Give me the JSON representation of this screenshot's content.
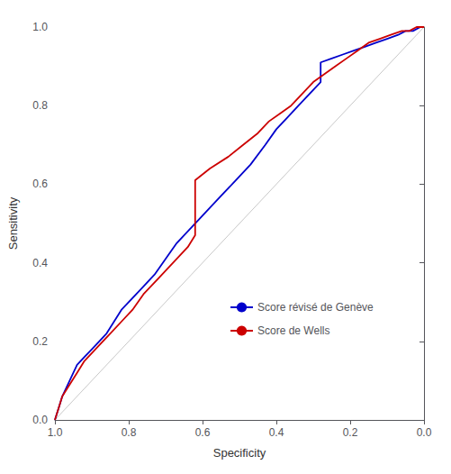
{
  "chart_data": {
    "type": "line",
    "xlabel": "Specificity",
    "ylabel": "Sensitivity",
    "xlim": [
      1.0,
      0.0
    ],
    "ylim": [
      0.0,
      1.0
    ],
    "xticks": [
      {
        "value": 1.0,
        "label": "1.0"
      },
      0.8,
      0.6,
      0.4,
      0.2,
      {
        "value": 0.0,
        "label": "0.0"
      }
    ],
    "yticks": [
      {
        "value": 0.0,
        "label": "0.0"
      },
      0.2,
      0.4,
      0.6,
      0.8,
      {
        "value": 1.0,
        "label": "1.0"
      }
    ],
    "grid": false,
    "legend": "lower right",
    "background_color": "#ffffff",
    "series": [
      {
        "color": "#c8c8c8",
        "x": [
          1.0,
          0.0
        ],
        "values": [
          0.0,
          1.0
        ]
      },
      {
        "name": "Score révisé de Genève",
        "color": "#0000cc",
        "x": [
          1.0,
          0.99,
          0.98,
          0.97,
          0.96,
          0.95,
          0.94,
          0.92,
          0.9,
          0.88,
          0.86,
          0.84,
          0.82,
          0.79,
          0.76,
          0.73,
          0.7,
          0.67,
          0.63,
          0.59,
          0.55,
          0.51,
          0.47,
          0.43,
          0.4,
          0.37,
          0.34,
          0.31,
          0.28,
          0.28,
          0.25,
          0.22,
          0.19,
          0.16,
          0.13,
          0.1,
          0.07,
          0.05,
          0.03,
          0.01,
          0.0
        ],
        "values": [
          0.0,
          0.03,
          0.06,
          0.08,
          0.1,
          0.12,
          0.14,
          0.16,
          0.18,
          0.2,
          0.22,
          0.25,
          0.28,
          0.31,
          0.34,
          0.37,
          0.41,
          0.45,
          0.49,
          0.53,
          0.57,
          0.61,
          0.65,
          0.7,
          0.74,
          0.77,
          0.8,
          0.83,
          0.86,
          0.91,
          0.92,
          0.93,
          0.94,
          0.95,
          0.96,
          0.97,
          0.98,
          0.99,
          0.99,
          1.0,
          1.0
        ]
      },
      {
        "name": "Score de Wells",
        "color": "#cc0000",
        "x": [
          1.0,
          0.99,
          0.98,
          0.96,
          0.94,
          0.92,
          0.9,
          0.88,
          0.85,
          0.82,
          0.79,
          0.76,
          0.72,
          0.68,
          0.64,
          0.62,
          0.62,
          0.58,
          0.53,
          0.49,
          0.45,
          0.42,
          0.39,
          0.36,
          0.33,
          0.3,
          0.27,
          0.24,
          0.21,
          0.18,
          0.15,
          0.12,
          0.09,
          0.06,
          0.04,
          0.02,
          0.0
        ],
        "values": [
          0.0,
          0.03,
          0.06,
          0.09,
          0.12,
          0.15,
          0.17,
          0.19,
          0.22,
          0.25,
          0.28,
          0.32,
          0.36,
          0.4,
          0.44,
          0.47,
          0.61,
          0.64,
          0.67,
          0.7,
          0.73,
          0.76,
          0.78,
          0.8,
          0.83,
          0.86,
          0.88,
          0.9,
          0.92,
          0.94,
          0.96,
          0.97,
          0.98,
          0.99,
          0.99,
          1.0,
          1.0
        ]
      }
    ]
  }
}
